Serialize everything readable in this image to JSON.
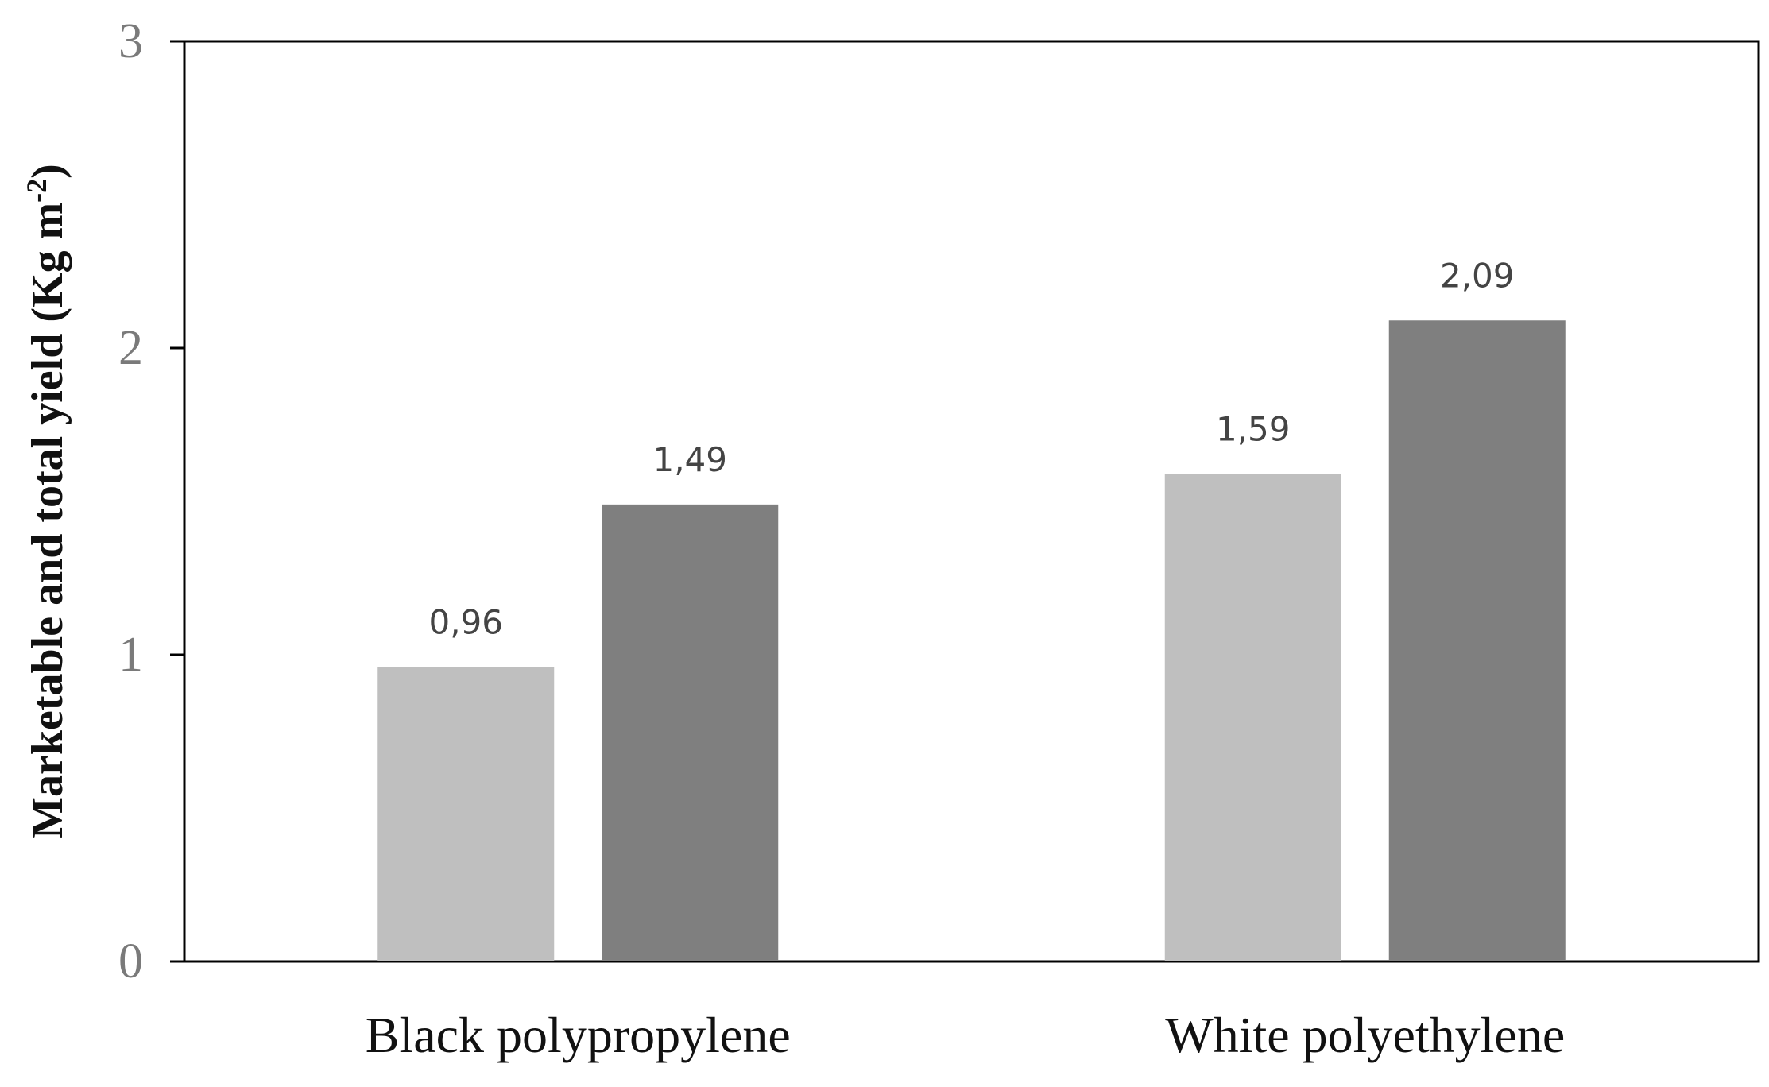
{
  "chart_data": {
    "type": "bar",
    "title": "",
    "xlabel": "",
    "ylabel": "Marketable and total yield (Kg m",
    "ylabel_superscript": "-2",
    "ylabel_suffix": ")",
    "ylim": [
      0,
      3
    ],
    "yticks": [
      "0",
      "1",
      "2",
      "3"
    ],
    "categories": [
      "Black polypropylene",
      "White polyethylene"
    ],
    "series": [
      {
        "values": [
          0.96,
          1.59
        ],
        "labels": [
          "0,96",
          "1,59"
        ],
        "color": "#bfbfbf"
      },
      {
        "values": [
          1.49,
          2.09
        ],
        "labels": [
          "1,49",
          "2,09"
        ],
        "color": "#7f7f7f"
      }
    ],
    "grid": false,
    "legend": "none"
  }
}
